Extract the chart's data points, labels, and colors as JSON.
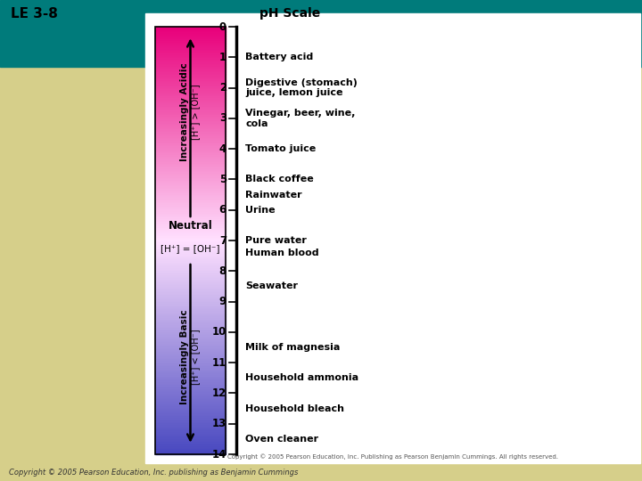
{
  "title": "pH Scale",
  "bg_outer": "#d6cf8a",
  "bg_teal": "#007b7b",
  "bg_white": "#ffffff",
  "le_label": "LE 3-8",
  "copyright1": "Copyright © 2005 Pearson Education, Inc. Publishing as Pearson Benjamin Cummings. All rights reserved.",
  "copyright2": "Copyright © 2005 Pearson Education, Inc. publishing as Benjamin Cummings",
  "ph_labels": [
    0,
    1,
    2,
    3,
    4,
    5,
    6,
    7,
    8,
    9,
    10,
    11,
    12,
    13,
    14
  ],
  "acidic_label": "Increasingly Acidic",
  "acidic_sub": "[H⁺] > [OH⁻]",
  "basic_label": "Increasingly Basic",
  "basic_sub": "[H⁺] < [OH⁻]",
  "neutral_label": "Neutral",
  "neutral_sub": "[H⁺] = [OH⁻]",
  "annotations": [
    [
      1.0,
      "Battery acid",
      false
    ],
    [
      2.0,
      "Digestive (stomach)\njuice, lemon juice",
      false
    ],
    [
      3.0,
      "Vinegar, beer, wine,\ncola",
      false
    ],
    [
      4.0,
      "Tomato juice",
      false
    ],
    [
      5.0,
      "Black coffee",
      false
    ],
    [
      5.5,
      "Rainwater",
      false
    ],
    [
      6.0,
      "Urine",
      false
    ],
    [
      7.0,
      "Pure water",
      false
    ],
    [
      7.4,
      "Human blood",
      false
    ],
    [
      8.5,
      "Seawater",
      false
    ],
    [
      10.5,
      "Milk of magnesia",
      false
    ],
    [
      11.5,
      "Household ammonia",
      false
    ],
    [
      12.5,
      "Household bleach",
      false
    ],
    [
      13.5,
      "Oven cleaner",
      false
    ]
  ]
}
